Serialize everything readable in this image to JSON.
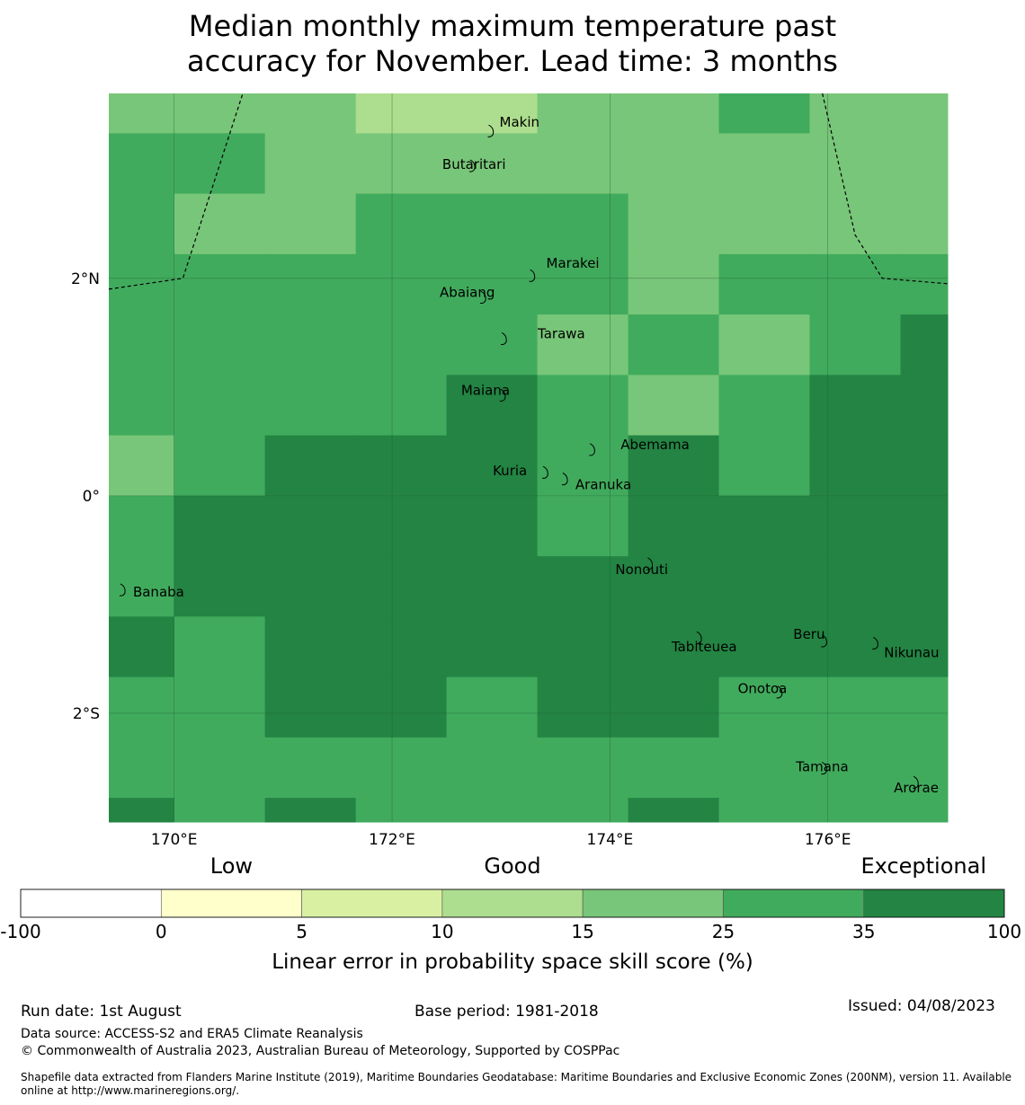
{
  "title": {
    "line1": "Median monthly maximum temperature past",
    "line2": "accuracy for November. Lead time: 3 months"
  },
  "map": {
    "lon_range": [
      169.4,
      177.1
    ],
    "lat_range": [
      -3.0,
      3.7
    ],
    "lon_ticks": [
      170,
      172,
      174,
      176
    ],
    "lon_tick_labels": [
      "170°E",
      "172°E",
      "174°E",
      "176°E"
    ],
    "lat_ticks": [
      2,
      0,
      -2
    ],
    "lat_tick_labels": [
      "2°N",
      "0°",
      "2°S"
    ],
    "grid_lon_edges": [
      169.4,
      170.0,
      170.833,
      171.667,
      172.5,
      173.333,
      174.167,
      175.0,
      175.833,
      176.667,
      177.1
    ],
    "grid_lat_edges": [
      3.7,
      3.333,
      2.778,
      2.222,
      1.667,
      1.111,
      0.556,
      0.0,
      -0.556,
      -1.111,
      -1.667,
      -2.222,
      -2.778,
      -3.0
    ],
    "cells": [
      [
        25,
        25,
        25,
        15,
        15,
        25,
        25,
        35,
        25,
        25
      ],
      [
        35,
        35,
        25,
        25,
        25,
        25,
        25,
        25,
        25,
        25
      ],
      [
        35,
        25,
        25,
        35,
        35,
        35,
        25,
        25,
        25,
        25
      ],
      [
        35,
        35,
        35,
        35,
        35,
        35,
        25,
        35,
        35,
        35
      ],
      [
        35,
        35,
        35,
        35,
        35,
        25,
        35,
        25,
        35,
        100
      ],
      [
        35,
        35,
        35,
        35,
        100,
        35,
        25,
        35,
        100,
        100
      ],
      [
        25,
        35,
        100,
        100,
        100,
        35,
        100,
        35,
        100,
        100
      ],
      [
        35,
        100,
        100,
        100,
        100,
        35,
        100,
        100,
        100,
        100
      ],
      [
        35,
        100,
        100,
        100,
        100,
        100,
        100,
        100,
        100,
        100
      ],
      [
        100,
        35,
        100,
        100,
        100,
        100,
        100,
        100,
        100,
        100
      ],
      [
        35,
        35,
        100,
        100,
        35,
        100,
        100,
        35,
        35,
        35
      ],
      [
        35,
        35,
        35,
        35,
        35,
        35,
        35,
        35,
        35,
        35
      ],
      [
        100,
        35,
        100,
        35,
        35,
        35,
        100,
        35,
        35,
        35
      ]
    ],
    "islands": [
      {
        "name": "Makin",
        "lon": 172.92,
        "lat": 3.36
      },
      {
        "name": "Butaritari",
        "lon": 172.75,
        "lat": 3.04
      },
      {
        "name": "Marakei",
        "lon": 173.3,
        "lat": 2.03
      },
      {
        "name": "Abaiang",
        "lon": 172.85,
        "lat": 1.83
      },
      {
        "name": "Tarawa",
        "lon": 173.04,
        "lat": 1.45
      },
      {
        "name": "Maiana",
        "lon": 173.03,
        "lat": 0.93
      },
      {
        "name": "Abemama",
        "lon": 173.85,
        "lat": 0.43
      },
      {
        "name": "Kuria",
        "lon": 173.42,
        "lat": 0.22
      },
      {
        "name": "Aranuka",
        "lon": 173.6,
        "lat": 0.16
      },
      {
        "name": "Nonouti",
        "lon": 174.38,
        "lat": -0.62
      },
      {
        "name": "Banaba",
        "lon": 169.54,
        "lat": -0.86
      },
      {
        "name": "Tabiteuea",
        "lon": 174.83,
        "lat": -1.3
      },
      {
        "name": "Beru",
        "lon": 175.98,
        "lat": -1.33
      },
      {
        "name": "Nikunau",
        "lon": 176.45,
        "lat": -1.35
      },
      {
        "name": "Onotoa",
        "lon": 175.57,
        "lat": -1.8
      },
      {
        "name": "Tamana",
        "lon": 175.98,
        "lat": -2.5
      },
      {
        "name": "Arorae",
        "lon": 176.82,
        "lat": -2.63
      }
    ],
    "boundaries": [
      [
        [
          169.4,
          1.9
        ],
        [
          170.08,
          2.0
        ],
        [
          170.63,
          3.7
        ]
      ],
      [
        [
          175.95,
          3.7
        ],
        [
          176.25,
          2.4
        ],
        [
          176.5,
          2.0
        ],
        [
          177.1,
          1.95
        ]
      ]
    ]
  },
  "legend": {
    "categories": [
      {
        "label": "Low",
        "anchor_index": 1
      },
      {
        "label": "Good",
        "anchor_index": 3
      },
      {
        "label": "Exceptional",
        "anchor_index": 6
      }
    ],
    "bins": [
      {
        "color": "#ffffff"
      },
      {
        "color": "#ffffcc"
      },
      {
        "color": "#d9f0a3"
      },
      {
        "color": "#addd8e"
      },
      {
        "color": "#78c679"
      },
      {
        "color": "#41ab5d"
      },
      {
        "color": "#238443"
      }
    ],
    "tick_labels": [
      "-100",
      "0",
      "5",
      "10",
      "15",
      "25",
      "35",
      "100"
    ],
    "axis_label": "Linear error in probability space skill score (%)"
  },
  "footer": {
    "run_date": "Run date: 1st August",
    "base_period": "Base period: 1981-2018",
    "issued": "Issued: 04/08/2023",
    "data_source": "Data source: ACCESS-S2 and ERA5 Climate Reanalysis",
    "copyright": "© Commonwealth of Australia 2023, Australian Bureau of Meteorology, Supported by COSPPac",
    "shapefile": "Shapefile data extracted from Flanders Marine Institute (2019), Maritime Boundaries Geodatabase: Maritime Boundaries and Exclusive Economic Zones (200NM), version 11. Available online at http://www.marineregions.org/."
  }
}
